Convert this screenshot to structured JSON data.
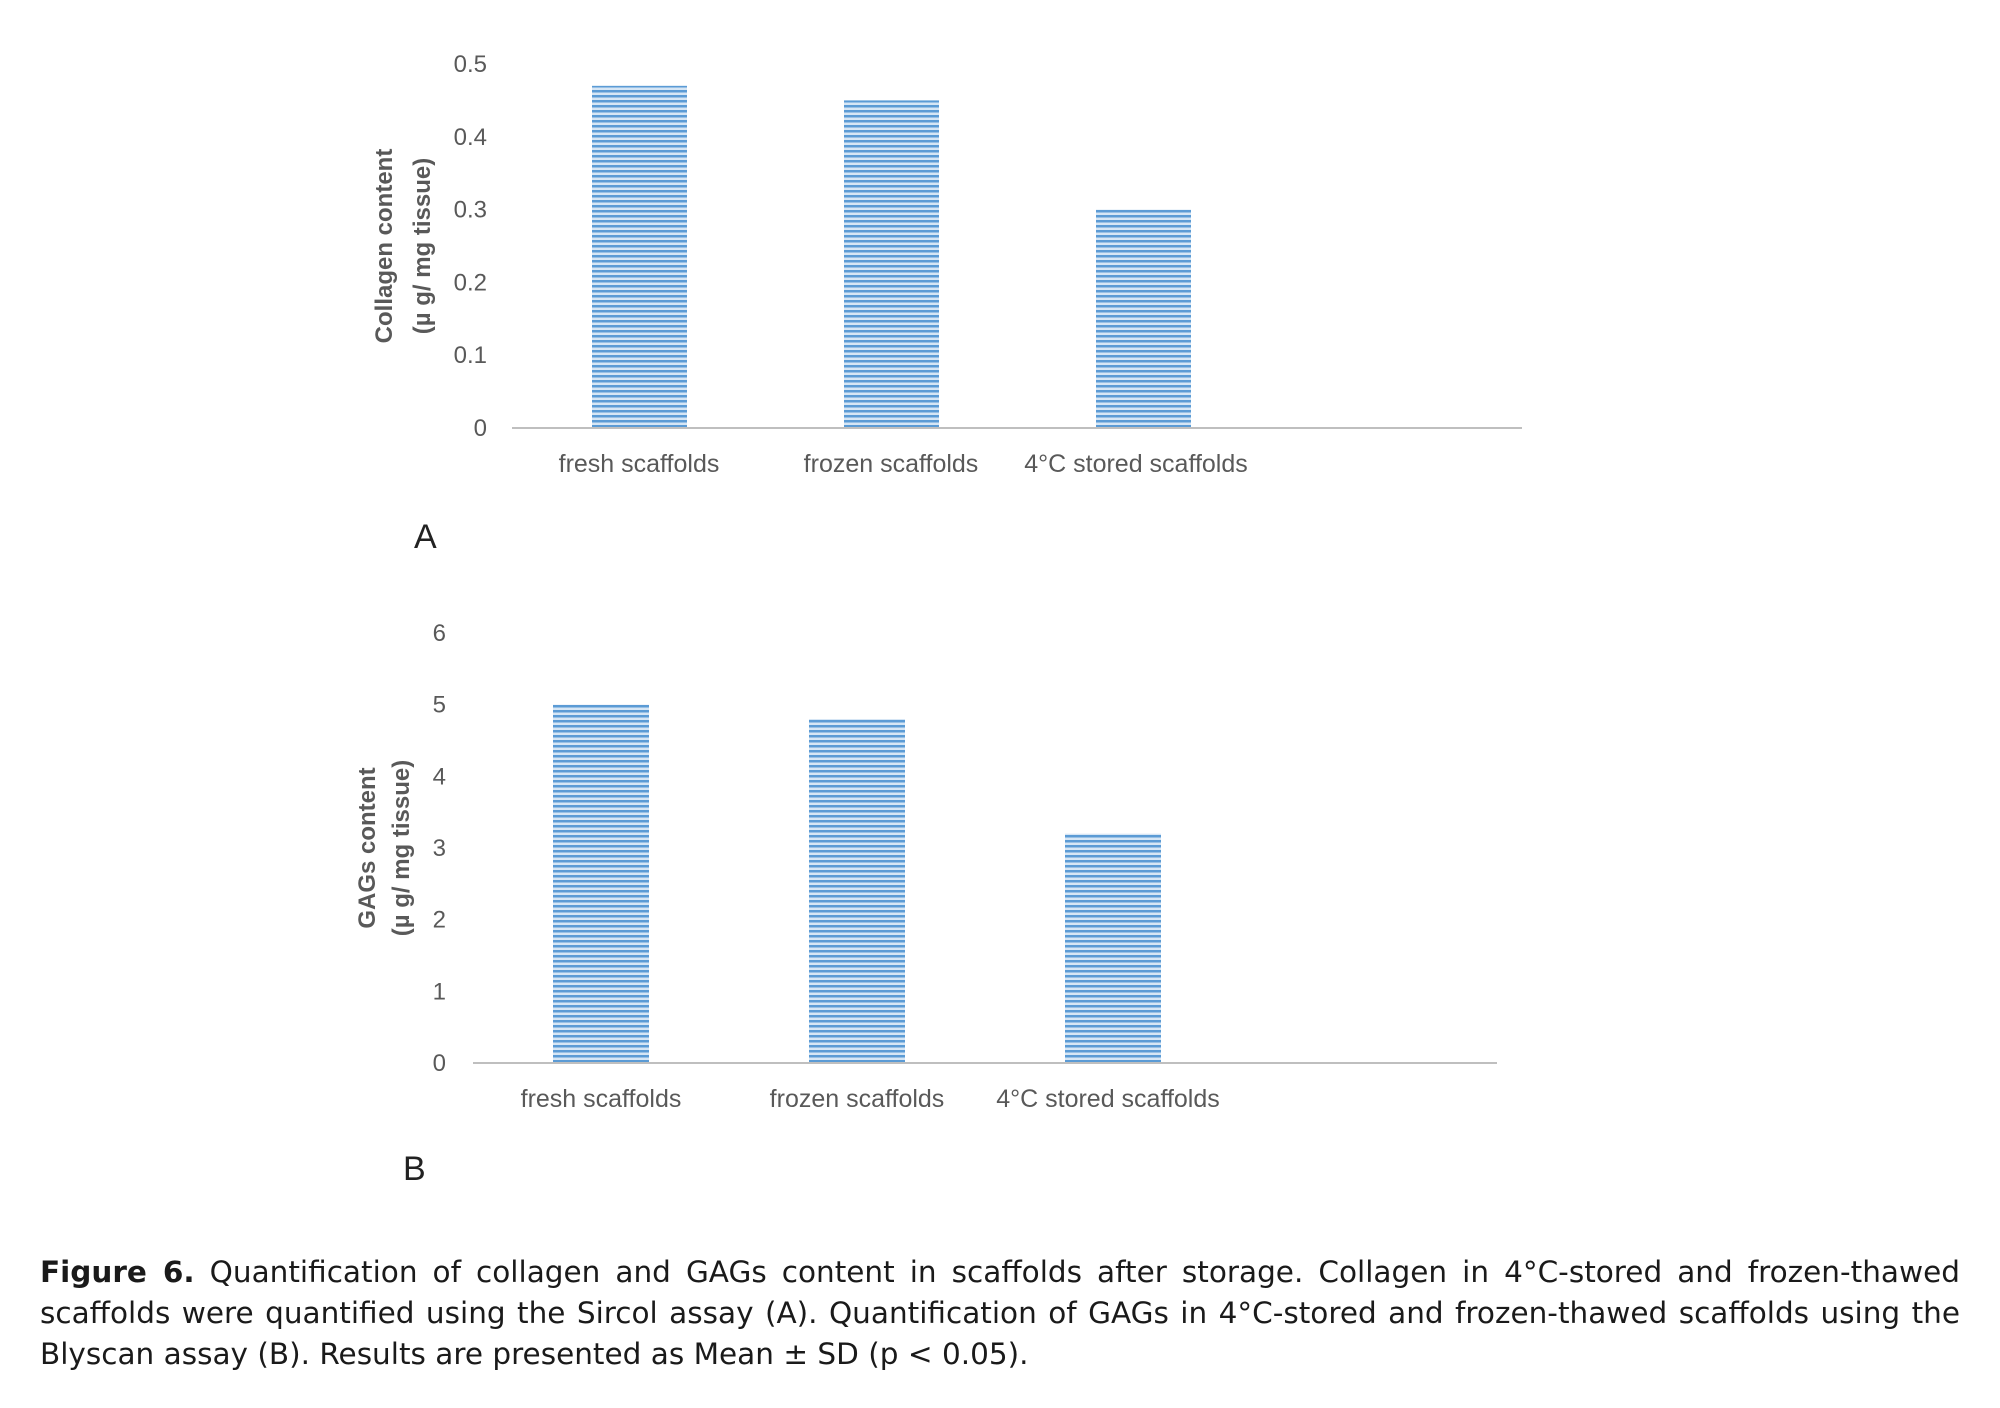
{
  "colors": {
    "bar_fill": "#5b9bd5",
    "bar_stripe": "#d6e6f5",
    "axis": "#bfbfbf",
    "text": "#595959"
  },
  "chart_data": [
    {
      "type": "bar",
      "panel": "A",
      "categories": [
        "fresh scaffolds",
        "frozen scaffolds",
        "4°C stored scaffolds"
      ],
      "values": [
        0.47,
        0.45,
        0.3
      ],
      "ylabel": [
        "Collagen content",
        "(µ g/ mg tissue)"
      ],
      "ylim": [
        0,
        0.5
      ],
      "yticks": [
        "0",
        "0.1",
        "0.2",
        "0.3",
        "0.4",
        "0.5"
      ],
      "grid": false
    },
    {
      "type": "bar",
      "panel": "B",
      "categories": [
        "fresh scaffolds",
        "frozen scaffolds",
        "4°C stored scaffolds"
      ],
      "values": [
        5.0,
        4.8,
        3.2
      ],
      "ylabel": [
        "GAGs content",
        "(µ g/ mg tissue)"
      ],
      "ylim": [
        0,
        6
      ],
      "yticks": [
        "0",
        "1",
        "2",
        "3",
        "4",
        "5",
        "6"
      ],
      "grid": false
    }
  ],
  "caption": {
    "label": "Figure 6.",
    "text": " Quantification of collagen and GAGs content in scaffolds after storage. Collagen in 4°C-stored and frozen-thawed scaffolds were quantified using the Sircol assay (A). Quantification of GAGs in 4°C-stored and frozen-thawed scaffolds using the Blyscan assay (B). Results are presented as Mean ± SD (p < 0.05)."
  }
}
